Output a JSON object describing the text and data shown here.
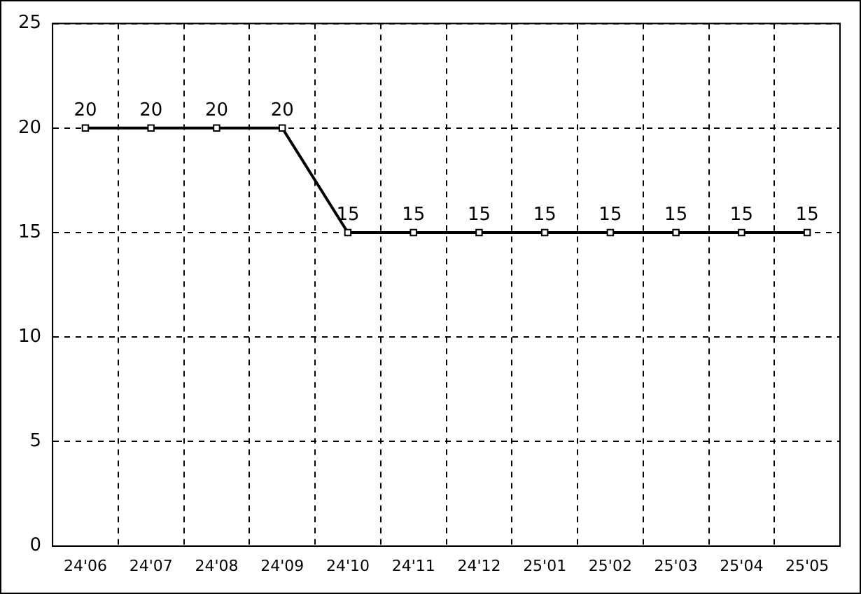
{
  "chart_data": {
    "type": "line",
    "categories": [
      "24'06",
      "24'07",
      "24'08",
      "24'09",
      "24'10",
      "24'11",
      "24'12",
      "25'01",
      "25'02",
      "25'03",
      "25'04",
      "25'05"
    ],
    "series": [
      {
        "color": "#000000",
        "values": [
          20,
          20,
          20,
          20,
          15,
          15,
          15,
          15,
          15,
          15,
          15,
          15
        ]
      }
    ],
    "ylim": [
      0,
      25
    ],
    "yticks": [
      0,
      5,
      10,
      15,
      20,
      25
    ],
    "grid": true,
    "legend": false,
    "marker": "square",
    "line_style": "solid",
    "data_labels": true
  }
}
